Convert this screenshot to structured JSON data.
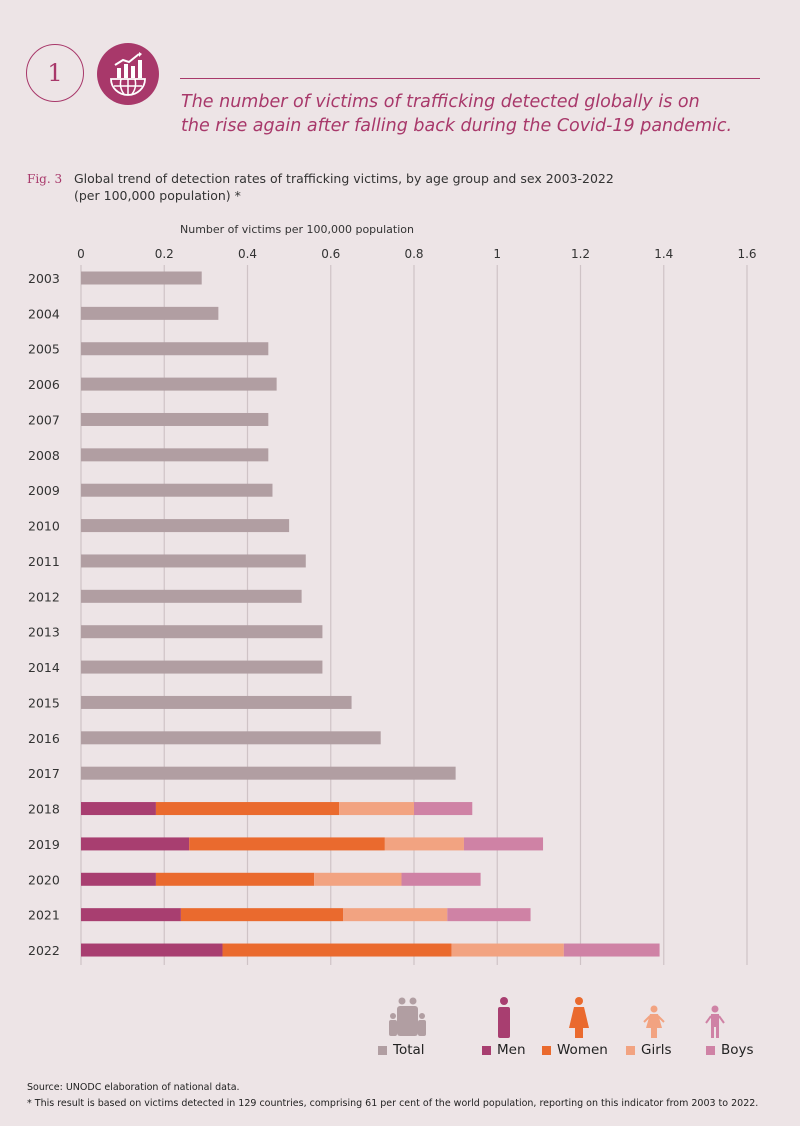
{
  "badge_number": "1",
  "headline": [
    "The number of victims of trafficking detected globally is on",
    "the rise again after falling back during the Covid-19 pandemic."
  ],
  "fig_label": "Fig. 3",
  "fig_title": [
    "Global trend of detection rates of trafficking victims, by age group and sex 2003-2022",
    "(per 100,000 population) *"
  ],
  "source": "Source: UNODC elaboration of national data.",
  "footnote": "* This result is based on victims detected in 129 countries, comprising 61 per cent of the world population, reporting on this indicator from 2003 to 2022.",
  "colors": {
    "accent": "#a8386a",
    "total": "#b19ea2",
    "men": "#a83e70",
    "women": "#ea6a2e",
    "girls": "#f2a381",
    "boys": "#cf82a5",
    "grid": "#cfc3c6"
  },
  "chart_data": {
    "type": "bar",
    "orientation": "horizontal",
    "stacked": true,
    "xlabel": "Number of victims per 100,000 population",
    "xlim": [
      0,
      1.6
    ],
    "xticks": [
      "0",
      "0.2",
      "0.4",
      "0.6",
      "0.8",
      "1",
      "1.2",
      "1.4",
      "1.6"
    ],
    "grid": true,
    "legend_placement": "bottom-right",
    "categories": [
      "2003",
      "2004",
      "2005",
      "2006",
      "2007",
      "2008",
      "2009",
      "2010",
      "2011",
      "2012",
      "2013",
      "2014",
      "2015",
      "2016",
      "2017",
      "2018",
      "2019",
      "2020",
      "2021",
      "2022"
    ],
    "series": [
      {
        "name": "Total",
        "key": "total",
        "values": [
          0.29,
          0.33,
          0.45,
          0.47,
          0.45,
          0.45,
          0.46,
          0.5,
          0.54,
          0.53,
          0.58,
          0.58,
          0.65,
          0.72,
          0.9,
          null,
          null,
          null,
          null,
          null
        ]
      },
      {
        "name": "Men",
        "key": "men",
        "values": [
          null,
          null,
          null,
          null,
          null,
          null,
          null,
          null,
          null,
          null,
          null,
          null,
          null,
          null,
          null,
          0.18,
          0.26,
          0.18,
          0.24,
          0.34
        ]
      },
      {
        "name": "Women",
        "key": "women",
        "values": [
          null,
          null,
          null,
          null,
          null,
          null,
          null,
          null,
          null,
          null,
          null,
          null,
          null,
          null,
          null,
          0.44,
          0.47,
          0.38,
          0.39,
          0.55
        ]
      },
      {
        "name": "Girls",
        "key": "girls",
        "values": [
          null,
          null,
          null,
          null,
          null,
          null,
          null,
          null,
          null,
          null,
          null,
          null,
          null,
          null,
          null,
          0.18,
          0.19,
          0.21,
          0.25,
          0.27
        ]
      },
      {
        "name": "Boys",
        "key": "boys",
        "values": [
          null,
          null,
          null,
          null,
          null,
          null,
          null,
          null,
          null,
          null,
          null,
          null,
          null,
          null,
          null,
          0.14,
          0.19,
          0.19,
          0.2,
          0.23
        ]
      }
    ]
  }
}
